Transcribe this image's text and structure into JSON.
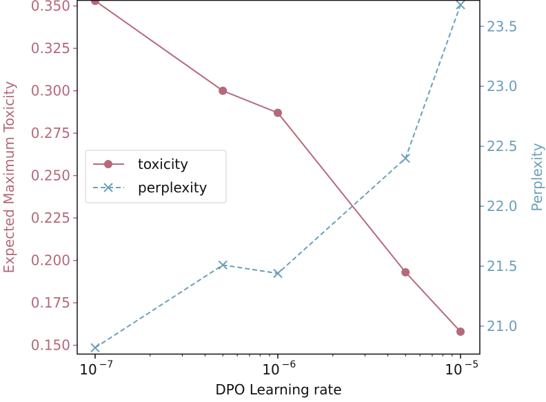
{
  "chart_data": {
    "type": "line",
    "xscale": "log",
    "x": [
      1e-07,
      5e-07,
      1e-06,
      5e-06,
      1e-05
    ],
    "xlabel": "DPO Learning rate",
    "xticks": [
      {
        "v": 1e-07,
        "base": "10",
        "exp": "−7"
      },
      {
        "v": 1e-06,
        "base": "10",
        "exp": "−6"
      },
      {
        "v": 1e-05,
        "base": "10",
        "exp": "−5"
      }
    ],
    "ylabel_left": "Expected Maximum Toxicity",
    "ylabel_right": "Perplexity",
    "ylim_left": [
      0.145,
      0.3535
    ],
    "ylim_right": [
      20.77,
      23.72
    ],
    "yticks_left": [
      "0.150",
      "0.175",
      "0.200",
      "0.225",
      "0.250",
      "0.275",
      "0.300",
      "0.325",
      "0.350"
    ],
    "yticks_right": [
      "21.0",
      "21.5",
      "22.0",
      "22.5",
      "23.0",
      "23.5"
    ],
    "series": [
      {
        "name": "toxicity",
        "axis": "left",
        "color": "#b5697a",
        "style": "solid",
        "marker": "o",
        "values": [
          0.353,
          0.3,
          0.287,
          0.193,
          0.158
        ]
      },
      {
        "name": "perplexity",
        "axis": "right",
        "color": "#6b9fb9",
        "style": "dashed",
        "marker": "x",
        "values": [
          20.82,
          21.51,
          21.44,
          22.4,
          23.68
        ]
      }
    ],
    "legend": "center-left"
  }
}
